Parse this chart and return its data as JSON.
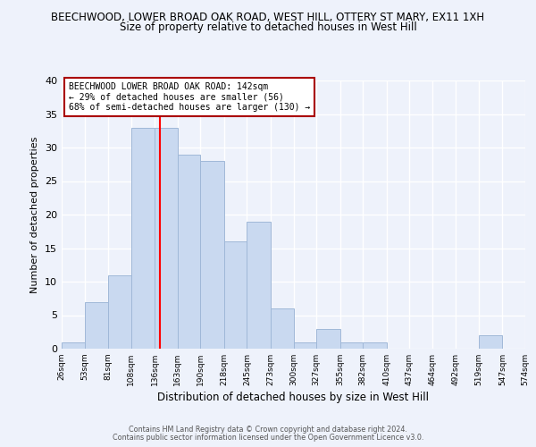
{
  "title_line1": "BEECHWOOD, LOWER BROAD OAK ROAD, WEST HILL, OTTERY ST MARY, EX11 1XH",
  "title_line2": "Size of property relative to detached houses in West Hill",
  "xlabel": "Distribution of detached houses by size in West Hill",
  "ylabel": "Number of detached properties",
  "bin_edges": [
    26,
    53,
    81,
    108,
    136,
    163,
    190,
    218,
    245,
    273,
    300,
    327,
    355,
    382,
    410,
    437,
    464,
    492,
    519,
    547,
    574
  ],
  "counts": [
    1,
    7,
    11,
    33,
    33,
    29,
    28,
    16,
    19,
    6,
    1,
    3,
    1,
    1,
    0,
    0,
    0,
    0,
    2,
    0
  ],
  "bar_color": "#c9d9f0",
  "bar_edgecolor": "#a0b8d8",
  "property_line_x": 142,
  "property_line_color": "red",
  "ylim": [
    0,
    40
  ],
  "annotation_title": "BEECHWOOD LOWER BROAD OAK ROAD: 142sqm",
  "annotation_line2": "← 29% of detached houses are smaller (56)",
  "annotation_line3": "68% of semi-detached houses are larger (130) →",
  "footer_line1": "Contains HM Land Registry data © Crown copyright and database right 2024.",
  "footer_line2": "Contains public sector information licensed under the Open Government Licence v3.0.",
  "background_color": "#eef2fb",
  "tick_labels": [
    "26sqm",
    "53sqm",
    "81sqm",
    "108sqm",
    "136sqm",
    "163sqm",
    "190sqm",
    "218sqm",
    "245sqm",
    "273sqm",
    "300sqm",
    "327sqm",
    "355sqm",
    "382sqm",
    "410sqm",
    "437sqm",
    "464sqm",
    "492sqm",
    "519sqm",
    "547sqm",
    "574sqm"
  ]
}
